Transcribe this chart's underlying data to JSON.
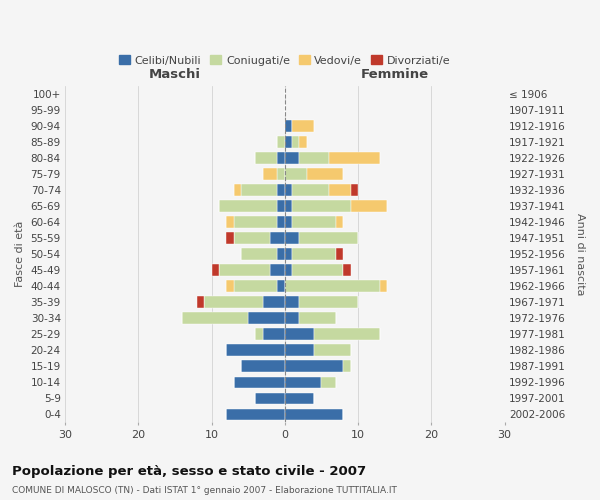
{
  "age_groups": [
    "0-4",
    "5-9",
    "10-14",
    "15-19",
    "20-24",
    "25-29",
    "30-34",
    "35-39",
    "40-44",
    "45-49",
    "50-54",
    "55-59",
    "60-64",
    "65-69",
    "70-74",
    "75-79",
    "80-84",
    "85-89",
    "90-94",
    "95-99",
    "100+"
  ],
  "birth_years": [
    "2002-2006",
    "1997-2001",
    "1992-1996",
    "1987-1991",
    "1982-1986",
    "1977-1981",
    "1972-1976",
    "1967-1971",
    "1962-1966",
    "1957-1961",
    "1952-1956",
    "1947-1951",
    "1942-1946",
    "1937-1941",
    "1932-1936",
    "1927-1931",
    "1922-1926",
    "1917-1921",
    "1912-1916",
    "1907-1911",
    "≤ 1906"
  ],
  "maschi": {
    "celibi": [
      8,
      4,
      7,
      6,
      8,
      3,
      5,
      3,
      1,
      2,
      1,
      2,
      1,
      1,
      1,
      0,
      1,
      0,
      0,
      0,
      0
    ],
    "coniugati": [
      0,
      0,
      0,
      0,
      0,
      1,
      9,
      8,
      6,
      7,
      5,
      5,
      6,
      8,
      5,
      1,
      3,
      1,
      0,
      0,
      0
    ],
    "vedovi": [
      0,
      0,
      0,
      0,
      0,
      0,
      0,
      0,
      1,
      0,
      0,
      0,
      1,
      0,
      1,
      2,
      0,
      0,
      0,
      0,
      0
    ],
    "divorziati": [
      0,
      0,
      0,
      0,
      0,
      0,
      0,
      1,
      0,
      1,
      0,
      1,
      0,
      0,
      0,
      0,
      0,
      0,
      0,
      0,
      0
    ]
  },
  "femmine": {
    "nubili": [
      8,
      4,
      5,
      8,
      4,
      4,
      2,
      2,
      0,
      1,
      1,
      2,
      1,
      1,
      1,
      0,
      2,
      1,
      1,
      0,
      0
    ],
    "coniugate": [
      0,
      0,
      2,
      1,
      5,
      9,
      5,
      8,
      13,
      7,
      6,
      8,
      6,
      8,
      5,
      3,
      4,
      1,
      0,
      0,
      0
    ],
    "vedove": [
      0,
      0,
      0,
      0,
      0,
      0,
      0,
      0,
      1,
      0,
      0,
      0,
      1,
      5,
      3,
      5,
      7,
      1,
      3,
      0,
      0
    ],
    "divorziate": [
      0,
      0,
      0,
      0,
      0,
      0,
      0,
      0,
      0,
      1,
      1,
      0,
      0,
      0,
      1,
      0,
      0,
      0,
      0,
      0,
      0
    ]
  },
  "colors": {
    "celibi": "#3a6ea8",
    "coniugati": "#c5d9a0",
    "vedovi": "#f5c96e",
    "divorziati": "#c0392b"
  },
  "xlim": 30,
  "title": "Popolazione per età, sesso e stato civile - 2007",
  "subtitle": "COMUNE DI MALOSCO (TN) - Dati ISTAT 1° gennaio 2007 - Elaborazione TUTTITALIA.IT",
  "ylabel_left": "Fasce di età",
  "ylabel_right": "Anni di nascita",
  "xlabel_maschi": "Maschi",
  "xlabel_femmine": "Femmine",
  "legend_labels": [
    "Celibi/Nubili",
    "Coniugati/e",
    "Vedovi/e",
    "Divorziati/e"
  ],
  "bg_color": "#f5f5f5",
  "grid_color": "#cccccc"
}
